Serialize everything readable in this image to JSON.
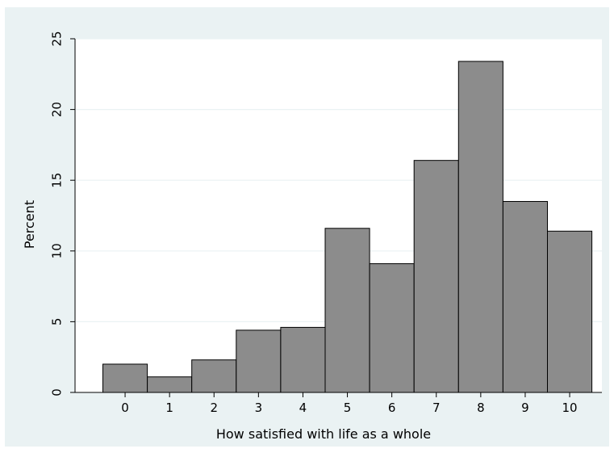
{
  "chart_data": {
    "type": "bar",
    "categories": [
      "0",
      "1",
      "2",
      "3",
      "4",
      "5",
      "6",
      "7",
      "8",
      "9",
      "10"
    ],
    "values": [
      2.0,
      1.1,
      2.3,
      4.4,
      4.6,
      11.6,
      9.1,
      16.4,
      23.4,
      13.5,
      11.4
    ],
    "title": "",
    "xlabel": "How satisfied with life as a whole",
    "ylabel": "Percent",
    "ylim": [
      0,
      25
    ],
    "yticks": [
      "0",
      "5",
      "10",
      "15",
      "20",
      "25"
    ],
    "grid": "horizontal",
    "colors": {
      "outer_background": "#eaf2f3",
      "plot_background": "#ffffff",
      "bar_fill": "#8c8c8c",
      "bar_edge": "#000000",
      "gridline": "#eaf2f3"
    }
  }
}
